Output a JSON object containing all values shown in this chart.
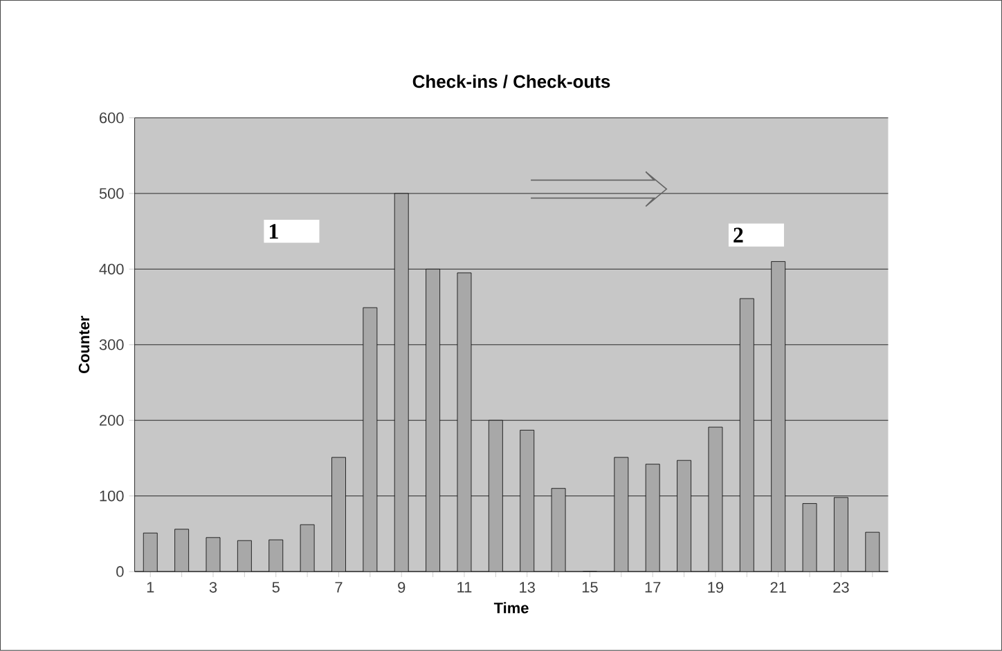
{
  "chart_data": {
    "type": "bar",
    "title": "Check-ins / Check-outs",
    "xlabel": "Time",
    "ylabel": "Counter",
    "categories": [
      "1",
      null,
      "3",
      null,
      "5",
      null,
      "7",
      null,
      "9",
      null,
      "11",
      null,
      "13",
      null,
      "15",
      null,
      "17",
      null,
      "19",
      null,
      "21",
      null,
      "23",
      null
    ],
    "values": [
      51,
      56,
      45,
      41,
      42,
      62,
      151,
      349,
      500,
      400,
      395,
      200,
      187,
      110,
      0,
      151,
      142,
      147,
      191,
      361,
      410,
      90,
      98,
      52
    ],
    "color": "#a8a8a8",
    "ylim": [
      0,
      600
    ],
    "yticks": [
      0,
      100,
      200,
      300,
      400,
      500,
      600
    ],
    "grid": "y",
    "annotations": [
      "1",
      "2"
    ]
  }
}
